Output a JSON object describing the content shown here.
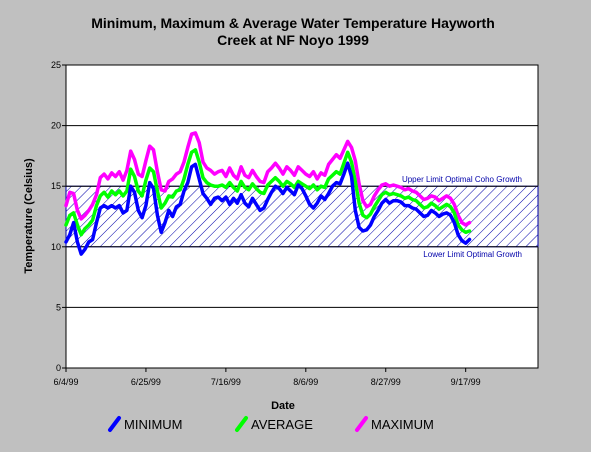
{
  "chart_data": {
    "type": "line",
    "title_line1": "Minimum, Maximum & Average Water Temperature Hayworth",
    "title_line2": "Creek at NF Noyo 1999",
    "xlabel": "Date",
    "ylabel": "Temperature (Celsius)",
    "ylim": [
      0,
      25
    ],
    "yticks": [
      "0",
      "5",
      "10",
      "15",
      "20",
      "25"
    ],
    "ytick_values": [
      0,
      5,
      10,
      15,
      20,
      25
    ],
    "xlim": [
      0,
      124
    ],
    "xtick_labels": [
      "6/4/99",
      "6/25/99",
      "7/16/99",
      "8/6/99",
      "8/27/99",
      "9/17/99"
    ],
    "xtick_values": [
      0,
      21,
      42,
      63,
      84,
      105
    ],
    "grid": "horizontal",
    "legend_position": "bottom",
    "band": {
      "low": 10,
      "high": 15,
      "color": "#0000aa",
      "upper_label": "Upper Limit Optimal Coho Growth",
      "lower_label": "Lower Limit Optimal Growth"
    },
    "series": [
      {
        "name": "MAXIMUM",
        "color": "#ff00ff",
        "points": [
          [
            0,
            13.4
          ],
          [
            1,
            14.5
          ],
          [
            2,
            14.4
          ],
          [
            3,
            13.0
          ],
          [
            4,
            12.3
          ],
          [
            5,
            12.6
          ],
          [
            6,
            13.0
          ],
          [
            7,
            13.5
          ],
          [
            8,
            14.3
          ],
          [
            9,
            15.7
          ],
          [
            10,
            16.0
          ],
          [
            11,
            15.6
          ],
          [
            12,
            16.1
          ],
          [
            13,
            15.8
          ],
          [
            14,
            16.2
          ],
          [
            15,
            15.5
          ],
          [
            16,
            16.3
          ],
          [
            17,
            17.9
          ],
          [
            18,
            17.2
          ],
          [
            19,
            16.0
          ],
          [
            20,
            15.8
          ],
          [
            21,
            17.1
          ],
          [
            22,
            18.3
          ],
          [
            23,
            18.0
          ],
          [
            24,
            16.2
          ],
          [
            25,
            14.7
          ],
          [
            26,
            14.6
          ],
          [
            27,
            15.4
          ],
          [
            28,
            15.6
          ],
          [
            29,
            16.0
          ],
          [
            30,
            16.2
          ],
          [
            31,
            17.0
          ],
          [
            32,
            18.2
          ],
          [
            33,
            19.3
          ],
          [
            34,
            19.4
          ],
          [
            35,
            18.6
          ],
          [
            36,
            17.0
          ],
          [
            37,
            16.5
          ],
          [
            38,
            16.3
          ],
          [
            39,
            16.0
          ],
          [
            40,
            16.2
          ],
          [
            41,
            16.3
          ],
          [
            42,
            15.8
          ],
          [
            43,
            16.5
          ],
          [
            44,
            15.9
          ],
          [
            45,
            15.6
          ],
          [
            46,
            16.6
          ],
          [
            47,
            15.9
          ],
          [
            48,
            15.7
          ],
          [
            49,
            16.3
          ],
          [
            50,
            15.8
          ],
          [
            51,
            15.4
          ],
          [
            52,
            15.3
          ],
          [
            53,
            16.2
          ],
          [
            54,
            16.5
          ],
          [
            55,
            16.9
          ],
          [
            56,
            16.5
          ],
          [
            57,
            16.0
          ],
          [
            58,
            16.6
          ],
          [
            59,
            16.3
          ],
          [
            60,
            15.9
          ],
          [
            61,
            16.6
          ],
          [
            62,
            16.3
          ],
          [
            63,
            16.0
          ],
          [
            64,
            15.8
          ],
          [
            65,
            16.2
          ],
          [
            66,
            15.6
          ],
          [
            67,
            16.1
          ],
          [
            68,
            15.9
          ],
          [
            69,
            16.8
          ],
          [
            70,
            17.2
          ],
          [
            71,
            17.6
          ],
          [
            72,
            17.3
          ],
          [
            73,
            18.0
          ],
          [
            74,
            18.7
          ],
          [
            75,
            18.2
          ],
          [
            76,
            17.1
          ],
          [
            77,
            15.2
          ],
          [
            78,
            13.8
          ],
          [
            79,
            13.3
          ],
          [
            80,
            13.5
          ],
          [
            81,
            14.2
          ],
          [
            82,
            14.7
          ],
          [
            83,
            15.1
          ],
          [
            84,
            15.2
          ],
          [
            85,
            15.0
          ],
          [
            86,
            15.1
          ],
          [
            87,
            15.0
          ],
          [
            88,
            14.9
          ],
          [
            89,
            14.7
          ],
          [
            90,
            14.8
          ],
          [
            91,
            14.6
          ],
          [
            92,
            14.5
          ],
          [
            93,
            14.2
          ],
          [
            94,
            13.9
          ],
          [
            95,
            14.0
          ],
          [
            96,
            14.2
          ],
          [
            97,
            14.1
          ],
          [
            98,
            13.8
          ],
          [
            99,
            14.0
          ],
          [
            100,
            14.2
          ],
          [
            101,
            14.0
          ],
          [
            102,
            13.5
          ],
          [
            103,
            12.6
          ],
          [
            104,
            12.0
          ],
          [
            105,
            11.8
          ],
          [
            106,
            12.0
          ]
        ]
      },
      {
        "name": "AVERAGE",
        "color": "#00ff00",
        "points": [
          [
            0,
            11.8
          ],
          [
            1,
            12.6
          ],
          [
            2,
            12.8
          ],
          [
            3,
            11.8
          ],
          [
            4,
            11.0
          ],
          [
            5,
            11.5
          ],
          [
            6,
            11.8
          ],
          [
            7,
            12.2
          ],
          [
            8,
            13.4
          ],
          [
            9,
            14.2
          ],
          [
            10,
            14.5
          ],
          [
            11,
            14.1
          ],
          [
            12,
            14.6
          ],
          [
            13,
            14.3
          ],
          [
            14,
            14.6
          ],
          [
            15,
            14.2
          ],
          [
            16,
            14.6
          ],
          [
            17,
            16.4
          ],
          [
            18,
            15.8
          ],
          [
            19,
            14.6
          ],
          [
            20,
            14.2
          ],
          [
            21,
            15.5
          ],
          [
            22,
            16.5
          ],
          [
            23,
            16.2
          ],
          [
            24,
            14.6
          ],
          [
            25,
            13.2
          ],
          [
            26,
            13.6
          ],
          [
            27,
            14.2
          ],
          [
            28,
            14.1
          ],
          [
            29,
            14.6
          ],
          [
            30,
            14.7
          ],
          [
            31,
            15.6
          ],
          [
            32,
            16.8
          ],
          [
            33,
            17.8
          ],
          [
            34,
            18.0
          ],
          [
            35,
            17.0
          ],
          [
            36,
            15.7
          ],
          [
            37,
            15.3
          ],
          [
            38,
            15.1
          ],
          [
            39,
            15.0
          ],
          [
            40,
            15.0
          ],
          [
            41,
            15.1
          ],
          [
            42,
            14.9
          ],
          [
            43,
            15.3
          ],
          [
            44,
            14.9
          ],
          [
            45,
            14.6
          ],
          [
            46,
            15.4
          ],
          [
            47,
            14.9
          ],
          [
            48,
            14.7
          ],
          [
            49,
            15.2
          ],
          [
            50,
            14.8
          ],
          [
            51,
            14.5
          ],
          [
            52,
            14.4
          ],
          [
            53,
            15.1
          ],
          [
            54,
            15.4
          ],
          [
            55,
            15.7
          ],
          [
            56,
            15.4
          ],
          [
            57,
            15.0
          ],
          [
            58,
            15.4
          ],
          [
            59,
            15.2
          ],
          [
            60,
            14.9
          ],
          [
            61,
            15.4
          ],
          [
            62,
            15.2
          ],
          [
            63,
            15.0
          ],
          [
            64,
            14.8
          ],
          [
            65,
            15.1
          ],
          [
            66,
            14.7
          ],
          [
            67,
            15.0
          ],
          [
            68,
            14.9
          ],
          [
            69,
            15.6
          ],
          [
            70,
            15.9
          ],
          [
            71,
            16.2
          ],
          [
            72,
            16.0
          ],
          [
            73,
            16.9
          ],
          [
            74,
            17.8
          ],
          [
            75,
            17.0
          ],
          [
            76,
            15.4
          ],
          [
            77,
            13.6
          ],
          [
            78,
            12.6
          ],
          [
            79,
            12.4
          ],
          [
            80,
            12.7
          ],
          [
            81,
            13.3
          ],
          [
            82,
            13.8
          ],
          [
            83,
            14.3
          ],
          [
            84,
            14.5
          ],
          [
            85,
            14.3
          ],
          [
            86,
            14.4
          ],
          [
            87,
            14.3
          ],
          [
            88,
            14.2
          ],
          [
            89,
            14.0
          ],
          [
            90,
            14.1
          ],
          [
            91,
            13.9
          ],
          [
            92,
            13.8
          ],
          [
            93,
            13.5
          ],
          [
            94,
            13.2
          ],
          [
            95,
            13.3
          ],
          [
            96,
            13.6
          ],
          [
            97,
            13.4
          ],
          [
            98,
            13.1
          ],
          [
            99,
            13.3
          ],
          [
            100,
            13.5
          ],
          [
            101,
            13.3
          ],
          [
            102,
            12.8
          ],
          [
            103,
            11.8
          ],
          [
            104,
            11.4
          ],
          [
            105,
            11.2
          ],
          [
            106,
            11.3
          ]
        ]
      },
      {
        "name": "MINIMUM",
        "color": "#0000ff",
        "points": [
          [
            0,
            10.4
          ],
          [
            1,
            11.0
          ],
          [
            2,
            12.0
          ],
          [
            3,
            10.4
          ],
          [
            4,
            9.4
          ],
          [
            5,
            9.8
          ],
          [
            6,
            10.4
          ],
          [
            7,
            10.6
          ],
          [
            8,
            12.0
          ],
          [
            9,
            13.2
          ],
          [
            10,
            13.4
          ],
          [
            11,
            13.2
          ],
          [
            12,
            13.4
          ],
          [
            13,
            13.2
          ],
          [
            14,
            13.4
          ],
          [
            15,
            12.8
          ],
          [
            16,
            13.0
          ],
          [
            17,
            15.0
          ],
          [
            18,
            14.5
          ],
          [
            19,
            13.0
          ],
          [
            20,
            12.4
          ],
          [
            21,
            13.4
          ],
          [
            22,
            15.3
          ],
          [
            23,
            14.8
          ],
          [
            24,
            12.6
          ],
          [
            25,
            11.2
          ],
          [
            26,
            12.0
          ],
          [
            27,
            13.0
          ],
          [
            28,
            12.5
          ],
          [
            29,
            13.3
          ],
          [
            30,
            13.5
          ],
          [
            31,
            14.6
          ],
          [
            32,
            15.3
          ],
          [
            33,
            16.6
          ],
          [
            34,
            16.8
          ],
          [
            35,
            15.6
          ],
          [
            36,
            14.4
          ],
          [
            37,
            14.0
          ],
          [
            38,
            13.5
          ],
          [
            39,
            14.0
          ],
          [
            40,
            14.1
          ],
          [
            41,
            13.8
          ],
          [
            42,
            14.1
          ],
          [
            43,
            13.5
          ],
          [
            44,
            14.0
          ],
          [
            45,
            13.6
          ],
          [
            46,
            14.3
          ],
          [
            47,
            13.6
          ],
          [
            48,
            13.3
          ],
          [
            49,
            14.0
          ],
          [
            50,
            13.5
          ],
          [
            51,
            13.0
          ],
          [
            52,
            13.2
          ],
          [
            53,
            13.9
          ],
          [
            54,
            14.5
          ],
          [
            55,
            15.0
          ],
          [
            56,
            14.8
          ],
          [
            57,
            14.4
          ],
          [
            58,
            14.9
          ],
          [
            59,
            14.6
          ],
          [
            60,
            14.3
          ],
          [
            61,
            15.1
          ],
          [
            62,
            14.8
          ],
          [
            63,
            14.2
          ],
          [
            64,
            13.5
          ],
          [
            65,
            13.2
          ],
          [
            66,
            13.6
          ],
          [
            67,
            14.2
          ],
          [
            68,
            13.9
          ],
          [
            69,
            14.4
          ],
          [
            70,
            15.0
          ],
          [
            71,
            15.3
          ],
          [
            72,
            15.2
          ],
          [
            73,
            16.0
          ],
          [
            74,
            16.9
          ],
          [
            75,
            15.8
          ],
          [
            76,
            13.0
          ],
          [
            77,
            11.6
          ],
          [
            78,
            11.3
          ],
          [
            79,
            11.4
          ],
          [
            80,
            11.8
          ],
          [
            81,
            12.5
          ],
          [
            82,
            13.0
          ],
          [
            83,
            13.6
          ],
          [
            84,
            13.9
          ],
          [
            85,
            13.6
          ],
          [
            86,
            13.8
          ],
          [
            87,
            13.8
          ],
          [
            88,
            13.7
          ],
          [
            89,
            13.4
          ],
          [
            90,
            13.4
          ],
          [
            91,
            13.2
          ],
          [
            92,
            13.1
          ],
          [
            93,
            12.8
          ],
          [
            94,
            12.5
          ],
          [
            95,
            12.6
          ],
          [
            96,
            13.0
          ],
          [
            97,
            12.8
          ],
          [
            98,
            12.5
          ],
          [
            99,
            12.7
          ],
          [
            100,
            12.8
          ],
          [
            101,
            12.6
          ],
          [
            102,
            12.0
          ],
          [
            103,
            11.0
          ],
          [
            104,
            10.5
          ],
          [
            105,
            10.3
          ],
          [
            106,
            10.6
          ]
        ]
      }
    ],
    "legend_order": [
      "MINIMUM",
      "AVERAGE",
      "MAXIMUM"
    ]
  }
}
